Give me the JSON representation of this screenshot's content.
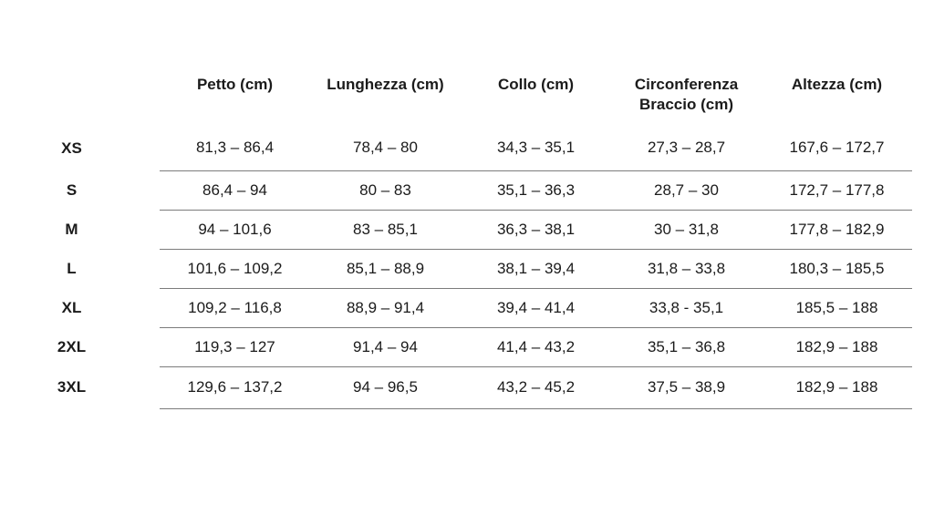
{
  "chart_data": {
    "type": "table",
    "columns": [
      "Petto (cm)",
      "Lunghezza (cm)",
      "Collo (cm)",
      "Circonferenza Braccio (cm)",
      "Altezza (cm)"
    ],
    "row_labels": [
      "XS",
      "S",
      "M",
      "L",
      "XL",
      "2XL",
      "3XL"
    ],
    "rows": [
      [
        "81,3 – 86,4",
        "78,4 – 80",
        "34,3 – 35,1",
        "27,3 – 28,7",
        "167,6 – 172,7"
      ],
      [
        "86,4 – 94",
        "80 – 83",
        "35,1 – 36,3",
        "28,7 – 30",
        "172,7 – 177,8"
      ],
      [
        "94 – 101,6",
        "83 – 85,1",
        "36,3 – 38,1",
        "30 – 31,8",
        "177,8 – 182,9"
      ],
      [
        "101,6 – 109,2",
        "85,1 – 88,9",
        "38,1 – 39,4",
        "31,8 – 33,8",
        "180,3 – 185,5"
      ],
      [
        "109,2 – 116,8",
        "88,9 – 91,4",
        "39,4 – 41,4",
        "33,8 - 35,1",
        "185,5 – 188"
      ],
      [
        "119,3 – 127",
        "91,4 – 94",
        "41,4 – 43,2",
        "35,1 – 36,8",
        "182,9 – 188"
      ],
      [
        "129,6 – 137,2",
        "94 – 96,5",
        "43,2 – 45,2",
        "37,5 – 38,9",
        "182,9 – 188"
      ]
    ]
  }
}
